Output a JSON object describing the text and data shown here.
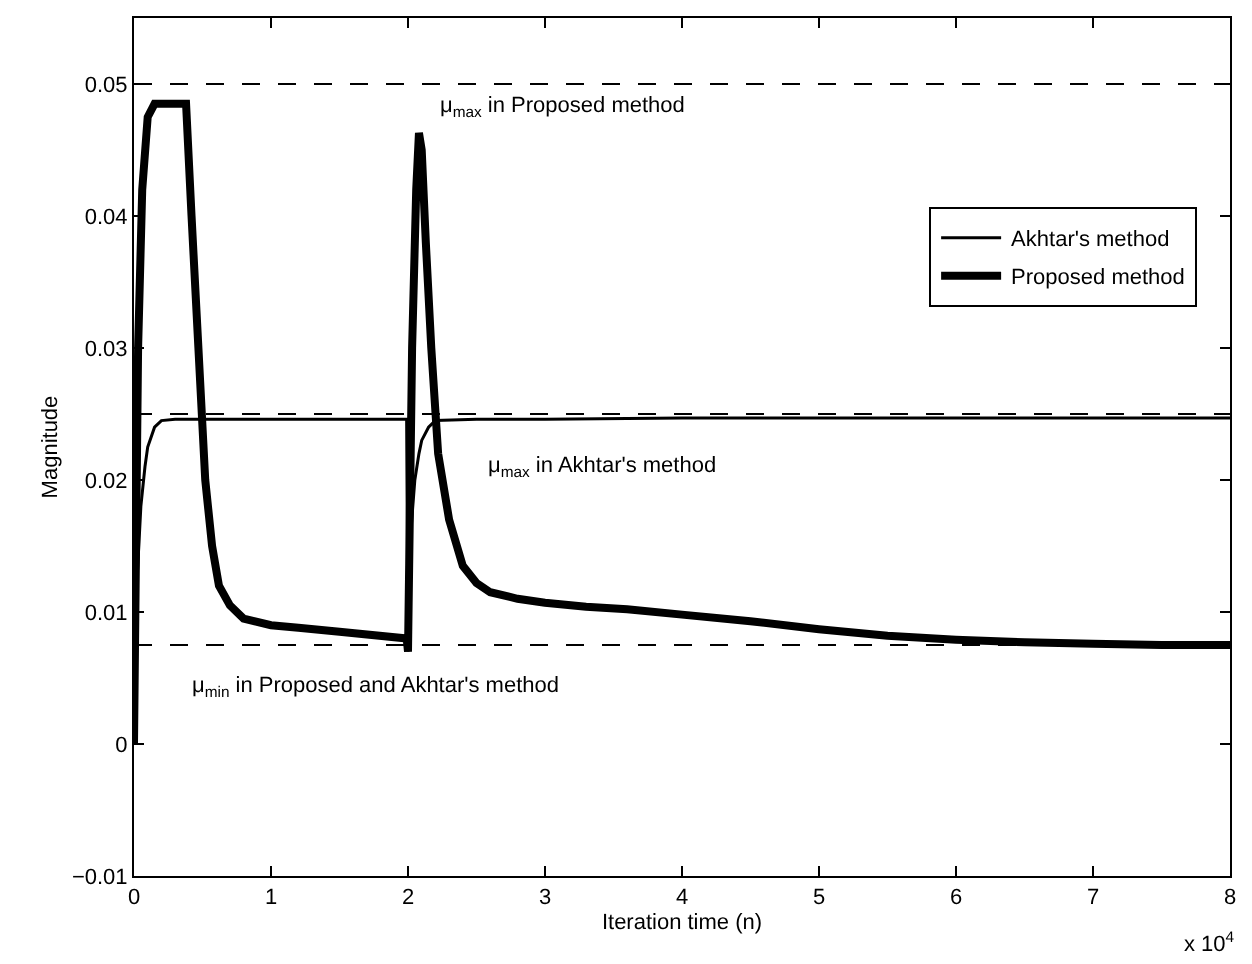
{
  "chart_data": {
    "type": "line",
    "xlabel": "Iteration time (n)",
    "ylabel": "Magnitude",
    "xlim": [
      0,
      8
    ],
    "ylim": [
      -0.01,
      0.055
    ],
    "xticks": [
      0,
      1,
      2,
      3,
      4,
      5,
      6,
      7,
      8
    ],
    "yticks": [
      -0.01,
      0,
      0.01,
      0.02,
      0.03,
      0.04,
      0.05
    ],
    "series": [
      {
        "name": "Akhtar's method",
        "color": "#000000",
        "x": [
          0,
          0.02,
          0.05,
          0.08,
          0.1,
          0.15,
          0.2,
          0.3,
          0.5,
          1,
          1.5,
          1.99,
          2,
          2.02,
          2.05,
          2.08,
          2.1,
          2.15,
          2.2,
          2.5,
          3,
          4,
          5,
          6,
          7,
          8
        ],
        "values": [
          0,
          0.012,
          0.018,
          0.021,
          0.0225,
          0.024,
          0.0245,
          0.0246,
          0.0246,
          0.0246,
          0.0246,
          0.0246,
          0.007,
          0.016,
          0.02,
          0.022,
          0.023,
          0.024,
          0.0245,
          0.0246,
          0.0246,
          0.0247,
          0.0247,
          0.0247,
          0.0247,
          0.0247
        ]
      },
      {
        "name": "Proposed method",
        "color": "#000000",
        "x": [
          0,
          0.03,
          0.06,
          0.1,
          0.15,
          0.2,
          0.3,
          0.38,
          0.42,
          0.47,
          0.52,
          0.57,
          0.62,
          0.7,
          0.8,
          1,
          1.2,
          1.5,
          1.99,
          2,
          2.03,
          2.06,
          2.08,
          2.1,
          2.13,
          2.17,
          2.22,
          2.3,
          2.4,
          2.5,
          2.6,
          2.8,
          3,
          3.3,
          3.6,
          4,
          4.5,
          5,
          5.5,
          6,
          6.5,
          7,
          7.5,
          8
        ],
        "values": [
          0,
          0.03,
          0.042,
          0.0475,
          0.0485,
          0.0485,
          0.0485,
          0.0485,
          0.04,
          0.03,
          0.02,
          0.015,
          0.012,
          0.0105,
          0.0095,
          0.009,
          0.0088,
          0.0085,
          0.008,
          0.007,
          0.03,
          0.042,
          0.0463,
          0.045,
          0.038,
          0.03,
          0.022,
          0.017,
          0.0135,
          0.0122,
          0.0115,
          0.011,
          0.0107,
          0.0104,
          0.0102,
          0.0098,
          0.0093,
          0.0087,
          0.0082,
          0.0079,
          0.0077,
          0.0076,
          0.0075,
          0.0075
        ]
      }
    ],
    "ref_lines": [
      {
        "axis": "y",
        "value": 0.05,
        "color": "#000000",
        "line_style": "dashed",
        "label": "μ$_{max}$ in Proposed method"
      },
      {
        "axis": "y",
        "value": 0.025,
        "color": "#000000",
        "line_style": "dashed",
        "label": "μ$_{max}$ in Akhtar's method"
      },
      {
        "axis": "y",
        "value": 0.0075,
        "color": "#000000",
        "line_style": "dashed",
        "label": "μ$_{min}$ in Proposed and Akhtar's method"
      }
    ],
    "annotations": [
      "x 10$^{4}$"
    ],
    "legend": "right",
    "marker": "none",
    "line_style": "solid"
  }
}
